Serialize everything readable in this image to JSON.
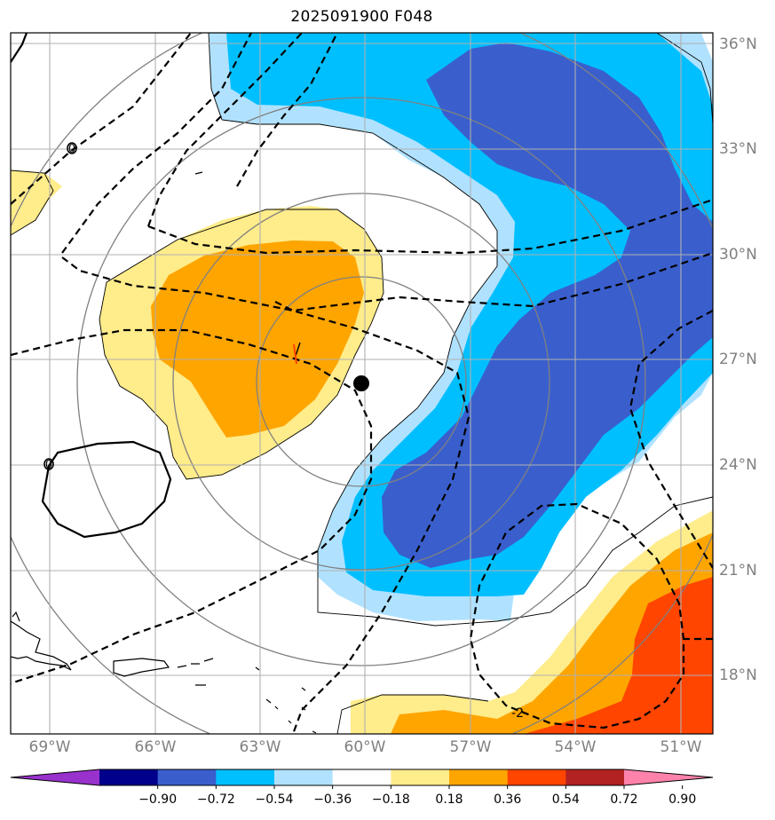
{
  "title": "2025091900 F048",
  "lon_labels": [
    "69°W",
    "66°W",
    "63°W",
    "60°W",
    "57°W",
    "54°W",
    "51°W"
  ],
  "lat_labels": [
    "36°N",
    "33°N",
    "30°N",
    "27°N",
    "24°N",
    "21°N",
    "18°N"
  ],
  "colorbar": {
    "ticks": [
      "−0.90",
      "−0.72",
      "−0.54",
      "−0.36",
      "−0.18",
      "0.18",
      "0.36",
      "0.54",
      "0.72",
      "0.90"
    ],
    "colors": [
      "#9932CC",
      "#00008B",
      "#3A5FCD",
      "#00BFFF",
      "#B0E2FF",
      "#FFFFFF",
      "#FFEC8B",
      "#FFA500",
      "#FF4500",
      "#B22222",
      "#FF82AB"
    ]
  },
  "contour_labels": {
    "left_zero_a": "0",
    "left_zero_b": "0",
    "southeast": "-2"
  },
  "center_marker": "storm-center"
}
